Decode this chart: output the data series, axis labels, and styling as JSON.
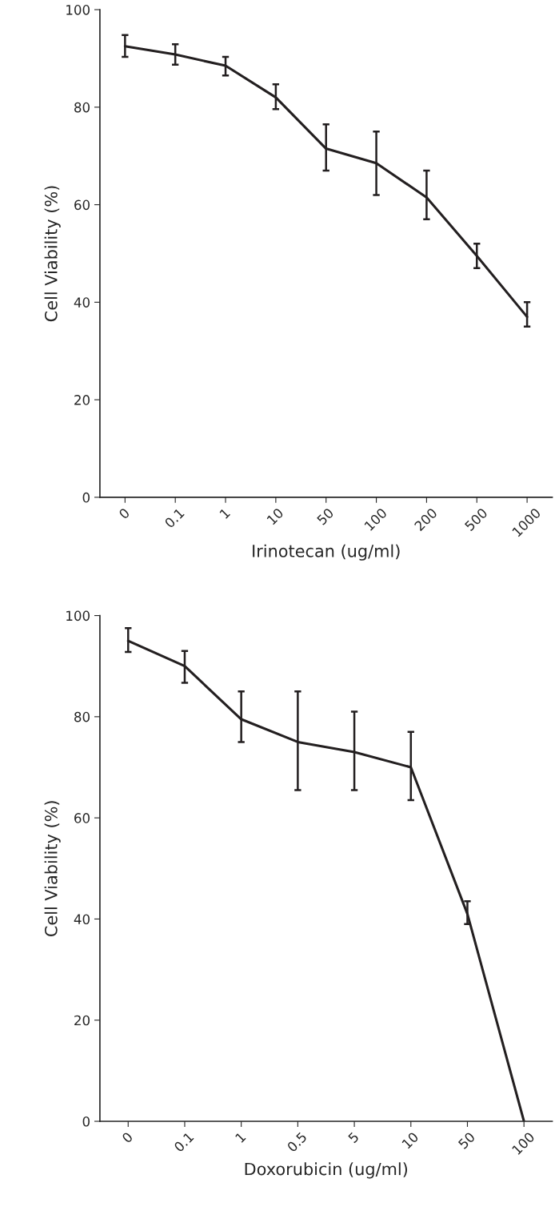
{
  "chart_data": [
    {
      "type": "line",
      "xlabel": "Irinotecan (ug/ml)",
      "ylabel": "Cell Viability (%)",
      "categories": [
        "0",
        "0.1",
        "1",
        "10",
        "50",
        "100",
        "200",
        "500",
        "1000"
      ],
      "series": [
        {
          "color": "#231f20",
          "values": [
            92.5,
            90.8,
            88.5,
            82,
            71.5,
            68.5,
            61.5,
            49.5,
            37
          ],
          "errors": [
            [
              90.3,
              94.8
            ],
            [
              88.7,
              92.9
            ],
            [
              86.5,
              90.3
            ],
            [
              79.6,
              84.7
            ],
            [
              67,
              76.5
            ],
            [
              62,
              75
            ],
            [
              57,
              67
            ],
            [
              47,
              52
            ],
            [
              35,
              40
            ]
          ]
        }
      ],
      "ylim": [
        0,
        100
      ],
      "yticks": [
        0,
        20,
        40,
        60,
        80,
        100
      ],
      "grid": false,
      "legend": false,
      "marker": "none",
      "line_style": "solid"
    },
    {
      "type": "line",
      "xlabel": "Doxorubicin (ug/ml)",
      "ylabel": "Cell Viability (%)",
      "categories": [
        "0",
        "0.1",
        "1",
        "0.5",
        "5",
        "10",
        "50",
        "100"
      ],
      "series": [
        {
          "color": "#231f20",
          "values": [
            95,
            90,
            79.5,
            75,
            73,
            70,
            41,
            0
          ],
          "errors": [
            [
              92.8,
              97.5
            ],
            [
              86.7,
              93
            ],
            [
              75,
              85
            ],
            [
              65.5,
              85
            ],
            [
              65.5,
              81
            ],
            [
              63.5,
              77
            ],
            [
              39,
              43.5
            ],
            null
          ]
        }
      ],
      "ylim": [
        0,
        100
      ],
      "yticks": [
        0,
        20,
        40,
        60,
        80,
        100
      ],
      "grid": false,
      "legend": false,
      "marker": "none",
      "line_style": "solid"
    }
  ]
}
